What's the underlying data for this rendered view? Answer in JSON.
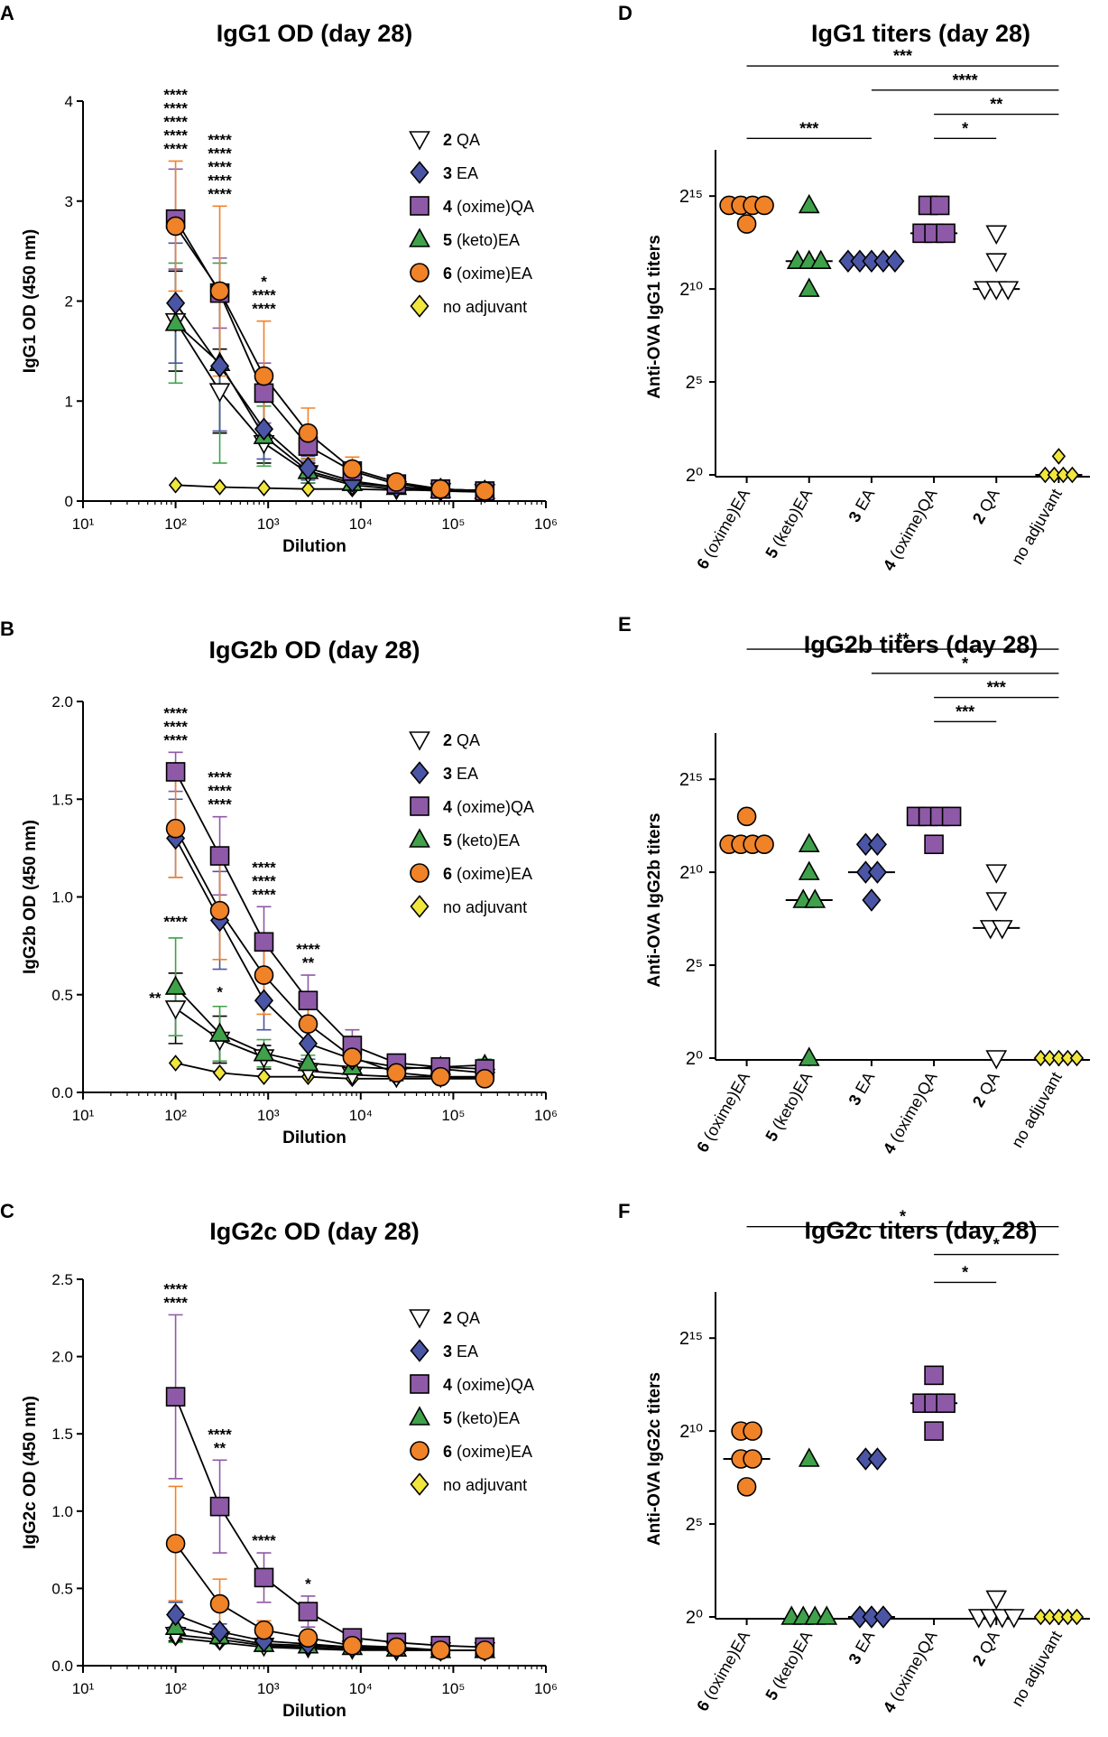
{
  "groups": {
    "qa2": {
      "num": "2",
      "suffix": " QA",
      "color": "#ffffff",
      "marker": "tridown"
    },
    "ea3": {
      "num": "3",
      "suffix": " EA",
      "color": "#4a55a5",
      "marker": "diamond"
    },
    "oqa4": {
      "num": "4",
      "suffix": " (oxime)QA",
      "color": "#8e5aa8",
      "marker": "square"
    },
    "kea5": {
      "num": "5",
      "suffix": " (keto)EA",
      "color": "#3fa14a",
      "marker": "triup"
    },
    "oea6": {
      "num": "6",
      "suffix": " (oxime)EA",
      "color": "#f08228",
      "marker": "circle"
    },
    "noadj": {
      "num": "",
      "suffix": "no adjuvant",
      "color": "#f0e63c",
      "marker": "diamond"
    }
  },
  "legend_order": [
    "qa2",
    "ea3",
    "oqa4",
    "kea5",
    "oea6",
    "noadj"
  ],
  "star_colors": {
    "black": "#000000",
    "green": "#3fa14a",
    "blue": "#4a55a5",
    "purple": "#8e5aa8",
    "orange": "#f08228"
  },
  "chart_data": [
    {
      "panel": "A",
      "type": "line",
      "title": "IgG1 OD (day 28)",
      "xlabel": "Dilution",
      "ylabel": "IgG1 OD (450 nm)",
      "xscale": "log10",
      "xlim_exp": [
        1,
        6
      ],
      "x_ticks": [
        "10¹",
        "10²",
        "10³",
        "10⁴",
        "10⁵",
        "10⁶"
      ],
      "ylim": [
        0,
        4
      ],
      "y_ticks": [
        0,
        1,
        2,
        3,
        4
      ],
      "y_tick_labels": [
        "0",
        "1",
        "2",
        "3",
        "4"
      ],
      "x": [
        100,
        300,
        900,
        2700,
        8100,
        24300,
        72900,
        218700
      ],
      "series": [
        {
          "group": "noadj",
          "values": [
            0.16,
            0.14,
            0.13,
            0.12,
            0.12,
            0.11,
            0.11,
            0.11
          ],
          "err": [
            0,
            0,
            0,
            0,
            0,
            0,
            0,
            0
          ]
        },
        {
          "group": "qa2",
          "values": [
            1.8,
            1.1,
            0.58,
            0.28,
            0.16,
            0.12,
            0.1,
            0.09
          ],
          "err": [
            0.5,
            0.42,
            0.2,
            0.1,
            0.05,
            0.03,
            0.02,
            0.02
          ]
        },
        {
          "group": "kea5",
          "values": [
            1.78,
            1.38,
            0.65,
            0.3,
            0.18,
            0.14,
            0.11,
            0.1
          ],
          "err": [
            0.6,
            1.0,
            0.3,
            0.12,
            0.07,
            0.04,
            0.03,
            0.02
          ]
        },
        {
          "group": "ea3",
          "values": [
            1.98,
            1.35,
            0.72,
            0.33,
            0.2,
            0.14,
            0.12,
            0.1
          ],
          "err": [
            0.6,
            0.65,
            0.3,
            0.12,
            0.06,
            0.04,
            0.03,
            0.02
          ]
        },
        {
          "group": "oqa4",
          "values": [
            2.82,
            2.08,
            1.08,
            0.55,
            0.3,
            0.17,
            0.12,
            0.1
          ],
          "err": [
            0.5,
            0.35,
            0.3,
            0.15,
            0.08,
            0.04,
            0.03,
            0.02
          ]
        },
        {
          "group": "oea6",
          "values": [
            2.75,
            2.1,
            1.25,
            0.68,
            0.32,
            0.19,
            0.12,
            0.1
          ],
          "err": [
            0.65,
            0.85,
            0.55,
            0.25,
            0.12,
            0.06,
            0.03,
            0.02
          ]
        }
      ],
      "stars": [
        {
          "x": 100,
          "lines": [
            [
              "****",
              "black"
            ],
            [
              "****",
              "green"
            ],
            [
              "****",
              "blue"
            ],
            [
              "****",
              "purple"
            ],
            [
              "****",
              "orange"
            ]
          ]
        },
        {
          "x": 300,
          "lines": [
            [
              "****",
              "black"
            ],
            [
              "****",
              "green"
            ],
            [
              "****",
              "blue"
            ],
            [
              "****",
              "purple"
            ],
            [
              "****",
              "orange"
            ]
          ]
        },
        {
          "x": 900,
          "lines": [
            [
              "*",
              "green"
            ],
            [
              "****",
              "purple"
            ],
            [
              "****",
              "orange"
            ]
          ]
        }
      ]
    },
    {
      "panel": "B",
      "type": "line",
      "title": "IgG2b OD (day 28)",
      "xlabel": "Dilution",
      "ylabel": "IgG2b OD (450 nm)",
      "xscale": "log10",
      "xlim_exp": [
        1,
        6
      ],
      "x_ticks": [
        "10¹",
        "10²",
        "10³",
        "10⁴",
        "10⁵",
        "10⁶"
      ],
      "ylim": [
        0,
        2
      ],
      "y_ticks": [
        0,
        0.5,
        1,
        1.5,
        2
      ],
      "y_tick_labels": [
        "0.0",
        "0.5",
        "1.0",
        "1.5",
        "2.0"
      ],
      "x": [
        100,
        300,
        900,
        2700,
        8100,
        24300,
        72900,
        218700
      ],
      "series": [
        {
          "group": "noadj",
          "values": [
            0.15,
            0.1,
            0.08,
            0.08,
            0.07,
            0.07,
            0.07,
            0.07
          ],
          "err": [
            0,
            0,
            0,
            0,
            0,
            0,
            0,
            0
          ]
        },
        {
          "group": "qa2",
          "values": [
            0.43,
            0.27,
            0.18,
            0.11,
            0.09,
            0.08,
            0.08,
            0.08
          ],
          "err": [
            0.18,
            0.12,
            0.06,
            0.03,
            0.02,
            0.02,
            0.02,
            0.02
          ]
        },
        {
          "group": "kea5",
          "values": [
            0.54,
            0.3,
            0.2,
            0.15,
            0.13,
            0.12,
            0.13,
            0.14
          ],
          "err": [
            0.25,
            0.14,
            0.07,
            0.04,
            0.03,
            0.03,
            0.03,
            0.03
          ]
        },
        {
          "group": "ea3",
          "values": [
            1.3,
            0.88,
            0.47,
            0.25,
            0.17,
            0.13,
            0.12,
            0.1
          ],
          "err": [
            0.2,
            0.25,
            0.15,
            0.08,
            0.04,
            0.03,
            0.02,
            0.02
          ]
        },
        {
          "group": "oqa4",
          "values": [
            1.64,
            1.21,
            0.77,
            0.47,
            0.24,
            0.15,
            0.13,
            0.12
          ],
          "err": [
            0.1,
            0.2,
            0.18,
            0.13,
            0.08,
            0.04,
            0.03,
            0.03
          ]
        },
        {
          "group": "oea6",
          "values": [
            1.35,
            0.93,
            0.6,
            0.35,
            0.18,
            0.1,
            0.08,
            0.07
          ],
          "err": [
            0.25,
            0.25,
            0.2,
            0.1,
            0.05,
            0.03,
            0.02,
            0.02
          ]
        }
      ],
      "stars": [
        {
          "x": 100,
          "lines": [
            [
              "****",
              "blue"
            ],
            [
              "****",
              "purple"
            ],
            [
              "****",
              "orange"
            ]
          ]
        },
        {
          "x": 300,
          "lines": [
            [
              "****",
              "blue"
            ],
            [
              "****",
              "purple"
            ],
            [
              "****",
              "orange"
            ]
          ]
        },
        {
          "x": 900,
          "lines": [
            [
              "****",
              "blue"
            ],
            [
              "****",
              "purple"
            ],
            [
              "****",
              "orange"
            ]
          ]
        },
        {
          "x": 2700,
          "lines": [
            [
              "****",
              "purple"
            ],
            [
              "**",
              "orange"
            ]
          ]
        },
        {
          "x": 100,
          "lines": [
            [
              "****",
              "green"
            ]
          ],
          "anchor_y": 0.82
        },
        {
          "x": 300,
          "lines": [
            [
              "*",
              "green"
            ]
          ],
          "anchor_y": 0.46
        },
        {
          "x": 60,
          "lines": [
            [
              "**",
              "black"
            ]
          ],
          "anchor_y": 0.43
        }
      ]
    },
    {
      "panel": "C",
      "type": "line",
      "title": "IgG2c OD (day 28)",
      "xlabel": "Dilution",
      "ylabel": "IgG2c OD (450 nm)",
      "xscale": "log10",
      "xlim_exp": [
        1,
        6
      ],
      "x_ticks": [
        "10¹",
        "10²",
        "10³",
        "10⁴",
        "10⁵",
        "10⁶"
      ],
      "ylim": [
        0,
        2.5
      ],
      "y_ticks": [
        0,
        0.5,
        1,
        1.5,
        2,
        2.5
      ],
      "y_tick_labels": [
        "0.0",
        "0.5",
        "1.0",
        "1.5",
        "2.0",
        "2.5"
      ],
      "x": [
        100,
        300,
        900,
        2700,
        8100,
        24300,
        72900,
        218700
      ],
      "series": [
        {
          "group": "noadj",
          "values": [
            0.18,
            0.15,
            0.12,
            0.11,
            0.1,
            0.1,
            0.1,
            0.1
          ],
          "err": [
            0,
            0,
            0,
            0,
            0,
            0,
            0,
            0
          ]
        },
        {
          "group": "qa2",
          "values": [
            0.2,
            0.17,
            0.13,
            0.12,
            0.11,
            0.1,
            0.1,
            0.1
          ],
          "err": [
            0.04,
            0.03,
            0.02,
            0.02,
            0.02,
            0.02,
            0.02,
            0.02
          ]
        },
        {
          "group": "kea5",
          "values": [
            0.25,
            0.19,
            0.14,
            0.13,
            0.12,
            0.11,
            0.1,
            0.1
          ],
          "err": [
            0.1,
            0.05,
            0.03,
            0.02,
            0.02,
            0.02,
            0.02,
            0.02
          ]
        },
        {
          "group": "ea3",
          "values": [
            0.33,
            0.22,
            0.16,
            0.14,
            0.12,
            0.11,
            0.1,
            0.1
          ],
          "err": [
            0.08,
            0.05,
            0.03,
            0.02,
            0.02,
            0.02,
            0.02,
            0.02
          ]
        },
        {
          "group": "oqa4",
          "values": [
            1.74,
            1.03,
            0.57,
            0.35,
            0.18,
            0.15,
            0.13,
            0.12
          ],
          "err": [
            0.53,
            0.3,
            0.16,
            0.1,
            0.04,
            0.03,
            0.02,
            0.02
          ]
        },
        {
          "group": "oea6",
          "values": [
            0.79,
            0.4,
            0.23,
            0.18,
            0.13,
            0.12,
            0.1,
            0.1
          ],
          "err": [
            0.37,
            0.16,
            0.06,
            0.03,
            0.02,
            0.02,
            0.02,
            0.02
          ]
        }
      ],
      "stars": [
        {
          "x": 100,
          "lines": [
            [
              "****",
              "purple"
            ],
            [
              "****",
              "orange"
            ]
          ]
        },
        {
          "x": 300,
          "lines": [
            [
              "****",
              "purple"
            ],
            [
              "**",
              "orange"
            ]
          ]
        },
        {
          "x": 900,
          "lines": [
            [
              "****",
              "purple"
            ]
          ]
        },
        {
          "x": 2700,
          "lines": [
            [
              "*",
              "purple"
            ]
          ]
        }
      ]
    },
    {
      "panel": "D",
      "type": "scatter",
      "title": "IgG1 titers (day 28)",
      "ylabel": "Anti-OVA IgG1 titers",
      "yscale": "log2",
      "ylim": [
        0,
        17
      ],
      "y_ticks": [
        0,
        5,
        10,
        15
      ],
      "y_tick_base": "2",
      "categories": [
        "oea6",
        "kea5",
        "ea3",
        "oqa4",
        "qa2",
        "noadj"
      ],
      "points": [
        [
          14.5,
          14.5,
          14.5,
          14.5,
          13.5
        ],
        [
          14.5,
          11.5,
          11.5,
          11.5,
          10
        ],
        [
          11.5,
          11.5,
          11.5,
          11.5,
          11.5
        ],
        [
          14.5,
          14.5,
          13,
          13,
          13
        ],
        [
          13,
          11.5,
          10,
          10,
          10
        ],
        [
          1,
          0,
          0,
          0,
          0
        ]
      ],
      "medians": [
        14.5,
        11.5,
        11.5,
        13,
        10,
        0
      ],
      "brackets": [
        {
          "from": 0,
          "to": 5,
          "label": "***",
          "y": 22
        },
        {
          "from": 2,
          "to": 5,
          "label": "****",
          "y": 20.7
        },
        {
          "from": 3,
          "to": 5,
          "label": "**",
          "y": 19.4
        },
        {
          "from": 0,
          "to": 2,
          "label": "***",
          "y": 18.1
        },
        {
          "from": 3,
          "to": 4,
          "label": "*",
          "y": 18.1
        }
      ]
    },
    {
      "panel": "E",
      "type": "scatter",
      "title": "IgG2b titers (day 28)",
      "ylabel": "Anti-OVA IgG2b titers",
      "yscale": "log2",
      "ylim": [
        0,
        17
      ],
      "y_ticks": [
        0,
        5,
        10,
        15
      ],
      "y_tick_base": "2",
      "categories": [
        "oea6",
        "kea5",
        "ea3",
        "oqa4",
        "qa2",
        "noadj"
      ],
      "points": [
        [
          13,
          11.5,
          11.5,
          11.5,
          11.5
        ],
        [
          11.5,
          10,
          8.5,
          8.5,
          0
        ],
        [
          11.5,
          11.5,
          10,
          10,
          8.5
        ],
        [
          13,
          13,
          13,
          13,
          11.5
        ],
        [
          10,
          8.5,
          7,
          7,
          0
        ],
        [
          0,
          0,
          0,
          0,
          0
        ]
      ],
      "medians": [
        11.5,
        8.5,
        10,
        13,
        7,
        0
      ],
      "brackets": [
        {
          "from": 0,
          "to": 5,
          "label": "**",
          "y": 22
        },
        {
          "from": 2,
          "to": 5,
          "label": "*",
          "y": 20.7
        },
        {
          "from": 3,
          "to": 5,
          "label": "***",
          "y": 19.4
        },
        {
          "from": 3,
          "to": 4,
          "label": "***",
          "y": 18.1
        }
      ]
    },
    {
      "panel": "F",
      "type": "scatter",
      "title": "IgG2c titers (day 28)",
      "ylabel": "Anti-OVA IgG2c titers",
      "yscale": "log2",
      "ylim": [
        0,
        17
      ],
      "y_ticks": [
        0,
        5,
        10,
        15
      ],
      "y_tick_base": "2",
      "categories": [
        "oea6",
        "kea5",
        "ea3",
        "oqa4",
        "qa2",
        "noadj"
      ],
      "points": [
        [
          10,
          10,
          8.5,
          8.5,
          7
        ],
        [
          8.5,
          0,
          0,
          0,
          0
        ],
        [
          8.5,
          8.5,
          0,
          0,
          0
        ],
        [
          13,
          11.5,
          11.5,
          11.5,
          10
        ],
        [
          1,
          0,
          0,
          0,
          0
        ],
        [
          0,
          0,
          0,
          0,
          0
        ]
      ],
      "medians": [
        8.5,
        0,
        0,
        11.5,
        0,
        0
      ],
      "brackets": [
        {
          "from": 0,
          "to": 5,
          "label": "*",
          "y": 21
        },
        {
          "from": 3,
          "to": 5,
          "label": "*",
          "y": 19.5
        },
        {
          "from": 3,
          "to": 4,
          "label": "*",
          "y": 18
        }
      ]
    }
  ]
}
